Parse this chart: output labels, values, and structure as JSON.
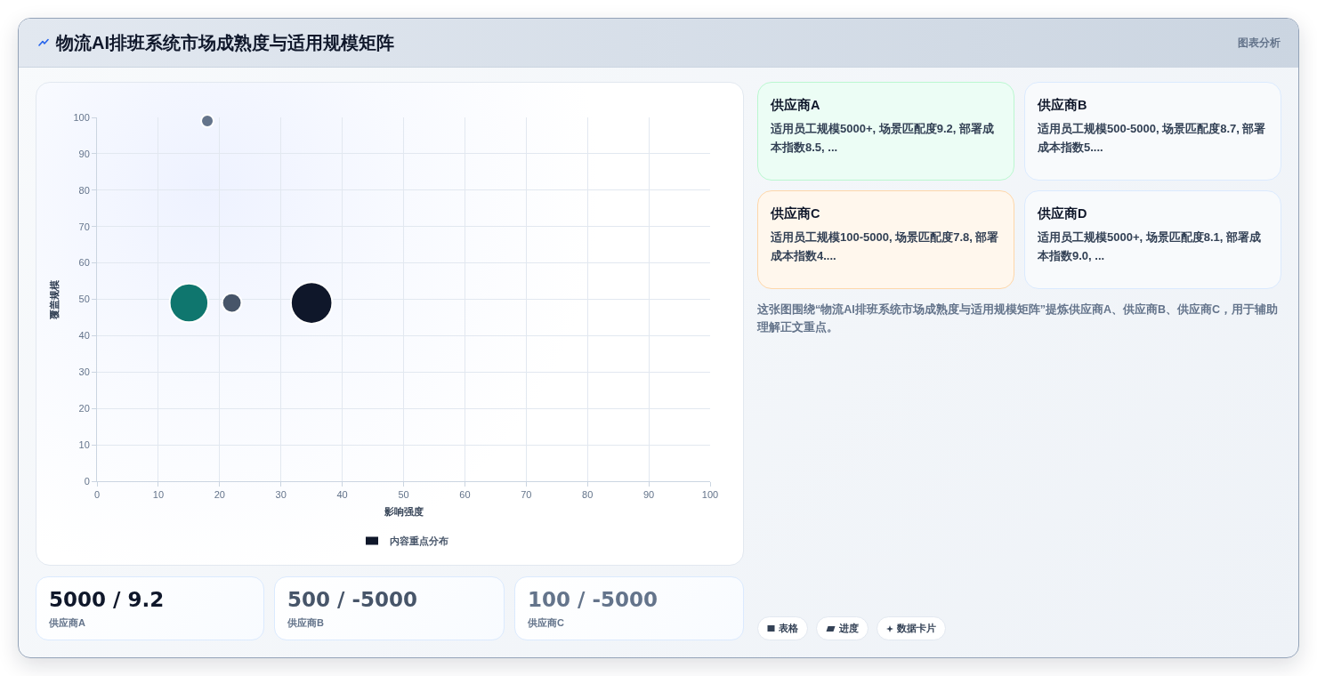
{
  "chart_data": [
    {
      "type": "other",
      "title": "物流AI排班系统市场成熟度与适用规模矩阵",
      "annotations": [
        "图表分析"
      ]
    },
    {
      "type": "bubble",
      "xlabel": "影响强度",
      "ylabel": "覆盖规模",
      "series": [
        {
          "name": "内容重点分布",
          "color": "#0f172a",
          "x": [
            35,
            15,
            22,
            18
          ],
          "values": [
            49,
            49,
            49,
            99
          ],
          "sizes": [
            1,
            0.87,
            0.22,
            0.09
          ],
          "colors": [
            "#0f172a",
            "#0f766e",
            "#475569",
            "#64748b"
          ]
        }
      ],
      "xlim": [
        0,
        100
      ],
      "xticks": [
        0,
        10,
        20,
        30,
        40,
        50,
        60,
        70,
        80,
        90,
        100
      ],
      "ylim": [
        0,
        100
      ],
      "yticks": [
        0,
        10,
        20,
        30,
        40,
        50,
        60,
        70,
        80,
        90,
        100
      ],
      "grid": true,
      "legend": "bottom"
    },
    {
      "type": "other",
      "title": "供应商A",
      "annotations": [
        "适用员工规模5000+, 场景匹配度9.2, 部署成本指数8.5, ..."
      ]
    },
    {
      "type": "other",
      "title": "供应商B",
      "annotations": [
        "适用员工规模500-5000, 场景匹配度8.7, 部署成本指数5...."
      ]
    },
    {
      "type": "other",
      "title": "供应商C",
      "annotations": [
        "适用员工规模100-5000, 场景匹配度7.8, 部署成本指数4...."
      ]
    },
    {
      "type": "other",
      "title": "供应商D",
      "annotations": [
        "适用员工规模5000+, 场景匹配度8.1, 部署成本指数9.0, ..."
      ]
    },
    {
      "type": "other",
      "annotations": [
        "这张图围绕“物流AI排班系统市场成熟度与适用规模矩阵”提炼供应商A、供应商B、供应商C，用于辅助理解正文重点。"
      ]
    },
    {
      "type": "other",
      "title": "5000 / 9.2",
      "annotations": [
        "供应商A"
      ]
    },
    {
      "type": "other",
      "title": "500 / -5000",
      "annotations": [
        "供应商B"
      ]
    },
    {
      "type": "other",
      "title": "100 / -5000",
      "annotations": [
        "供应商C"
      ]
    },
    {
      "type": "other",
      "annotations": [
        "表格",
        "进度",
        "数据卡片"
      ]
    }
  ]
}
